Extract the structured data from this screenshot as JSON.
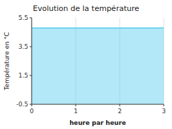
{
  "chart_data": {
    "type": "area",
    "title": "Evolution de la température",
    "x_label": "heure par heure",
    "y_label": "Température en °C",
    "x": [
      0,
      3
    ],
    "values": [
      4.8,
      4.8
    ],
    "color": "#55ccee",
    "xlim": [
      0,
      3
    ],
    "ylim": [
      -0.5,
      5.5
    ],
    "xticks": [
      0,
      1,
      2,
      3
    ],
    "yticks": [
      -0.5,
      1.5,
      3.5,
      5.5
    ],
    "grid": "x"
  }
}
